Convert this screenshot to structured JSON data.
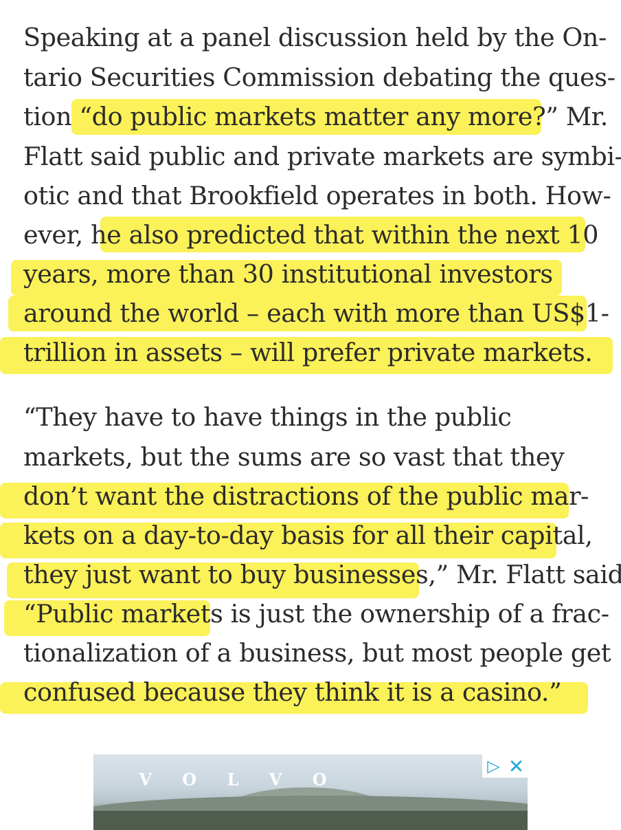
{
  "article": {
    "lines": [
      "Speaking at a panel discussion held by the On-",
      "tario Securities Commission debating the ques-",
      "tion “do public markets matter any more?” Mr.",
      "Flatt said public and private markets are symbi-",
      "otic and that Brookfield operates in both. How-",
      "ever, he also predicted that within the next 10",
      "years, more than 30 institutional investors",
      "around the world – each with more than US$1-",
      "trillion in assets – will prefer private markets.",
      "“They have to have things in the public",
      "markets, but the sums are so vast that they",
      "don’t want the distractions of the public mar-",
      "kets on a day-to-day basis for all their capital,",
      "they just want to buy businesses,” Mr. Flatt said.",
      "“Public markets is just the ownership of a frac-",
      "tionalization of a business, but most people get",
      "confused because they think it is a casino.”"
    ],
    "highlight_color": "#fbf04a"
  },
  "ad": {
    "brand": "V O L V O",
    "adchoices_icon": "adchoices-icon",
    "close_icon": "close-icon"
  }
}
